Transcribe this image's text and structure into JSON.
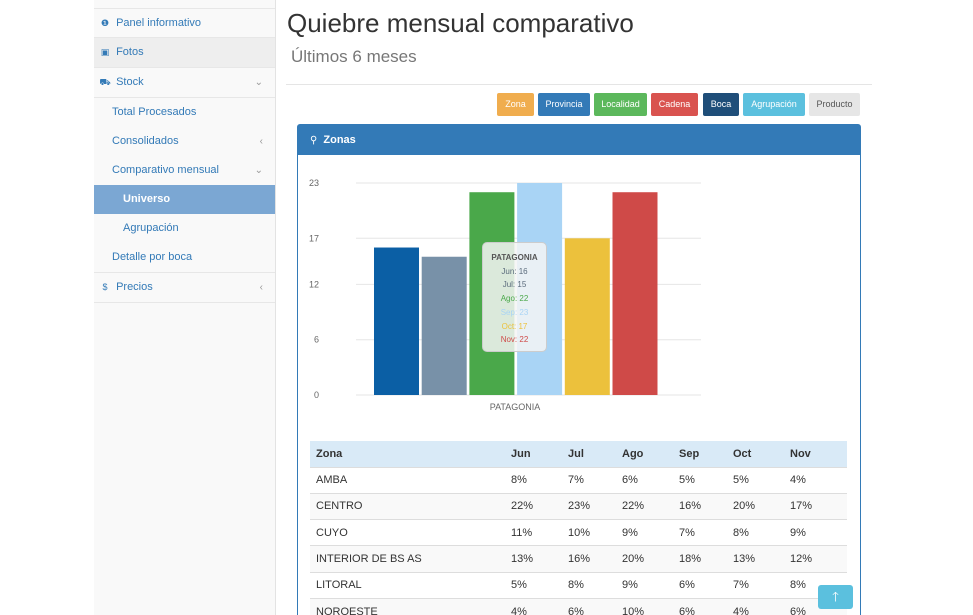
{
  "sidebar": {
    "panel": "Panel informativo",
    "fotos": "Fotos",
    "stock": "Stock",
    "total": "Total Procesados",
    "consolidados": "Consolidados",
    "comparativo": "Comparativo mensual",
    "universo": "Universo",
    "agrupacion": "Agrupación",
    "detalle": "Detalle por boca",
    "precios": "Precios"
  },
  "header": {
    "title": "Quiebre mensual comparativo",
    "subtitle": "Últimos 6 meses"
  },
  "filters": [
    {
      "label": "Zona",
      "color": "#f0ad4e"
    },
    {
      "label": "Provincia",
      "color": "#337ab7"
    },
    {
      "label": "Localidad",
      "color": "#5cb85c"
    },
    {
      "label": "Cadena",
      "color": "#d9534f"
    },
    {
      "label": "Boca",
      "color": "#1f4e79"
    },
    {
      "label": "Agrupación",
      "color": "#5bc0de"
    },
    {
      "label": "Producto",
      "color": "#e6e6e6"
    }
  ],
  "panel": {
    "title": "Zonas"
  },
  "chart_data": {
    "type": "bar",
    "categories": [
      "PATAGONIA"
    ],
    "series": [
      {
        "name": "Jun",
        "values": [
          16
        ],
        "color": "#0b5fa5"
      },
      {
        "name": "Jul",
        "values": [
          15
        ],
        "color": "#7891a8"
      },
      {
        "name": "Ago",
        "values": [
          22
        ],
        "color": "#4aa84a"
      },
      {
        "name": "Sep",
        "values": [
          23
        ],
        "color": "#a9d4f5"
      },
      {
        "name": "Oct",
        "values": [
          17
        ],
        "color": "#ecc13c"
      },
      {
        "name": "Nov",
        "values": [
          22
        ],
        "color": "#cf4a48"
      }
    ],
    "yticks": [
      "23",
      "17",
      "12",
      "6",
      "0"
    ],
    "ylim": [
      0,
      23
    ]
  },
  "tooltip": {
    "title": "PATAGONIA",
    "lines": [
      "Jun: 16",
      "Jul: 15",
      "Ago: 22",
      "Sep: 23",
      "Oct: 17",
      "Nov: 22"
    ]
  },
  "table": {
    "headers": [
      "Zona",
      "Jun",
      "Jul",
      "Ago",
      "Sep",
      "Oct",
      "Nov"
    ],
    "rows": [
      [
        "AMBA",
        "8%",
        "7%",
        "6%",
        "5%",
        "5%",
        "4%"
      ],
      [
        "CENTRO",
        "22%",
        "23%",
        "22%",
        "16%",
        "20%",
        "17%"
      ],
      [
        "CUYO",
        "11%",
        "10%",
        "9%",
        "7%",
        "8%",
        "9%"
      ],
      [
        "INTERIOR DE BS AS",
        "13%",
        "16%",
        "20%",
        "18%",
        "13%",
        "12%"
      ],
      [
        "LITORAL",
        "5%",
        "8%",
        "9%",
        "6%",
        "7%",
        "8%"
      ],
      [
        "NOROESTE",
        "4%",
        "6%",
        "10%",
        "6%",
        "4%",
        "6%"
      ]
    ]
  }
}
